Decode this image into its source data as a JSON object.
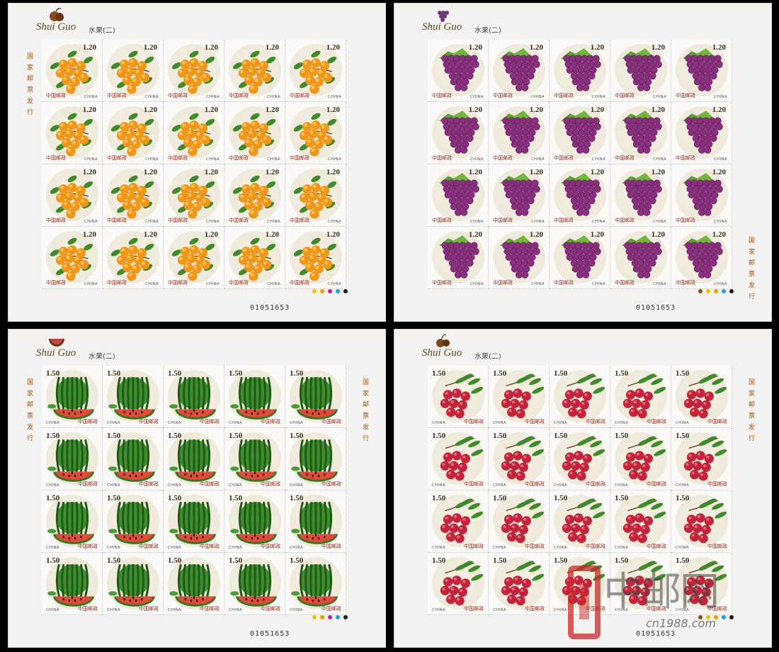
{
  "sheets": [
    {
      "id": "apricot",
      "header": {
        "title": "Shui Guo",
        "subtitle": "水果(二)"
      },
      "stamp": {
        "value": "1.20",
        "value_side": "right",
        "post": "中国邮政",
        "country": "CHINA",
        "fruit": "apricot"
      },
      "margin_text": "国 家 邮 票 发 行",
      "serial": "01051653",
      "color_dots": [
        "#f1c400",
        "#e8a000",
        "#c0208a",
        "#1aa0d8",
        "#1a1a1a"
      ]
    },
    {
      "id": "grape",
      "header": {
        "title": "Shui Guo",
        "subtitle": "水果(二)"
      },
      "stamp": {
        "value": "1.20",
        "value_side": "right",
        "post": "中国邮政",
        "country": "CHINA",
        "fruit": "grape"
      },
      "margin_text": "国 家 邮 票 发 行",
      "serial": "01051653",
      "color_dots": [
        "#8a4a1a",
        "#f1c400",
        "#e8a000",
        "#1aa0d8",
        "#1a1a1a"
      ]
    },
    {
      "id": "watermelon",
      "header": {
        "title": "Shui Guo",
        "subtitle": "水果(二)"
      },
      "stamp": {
        "value": "1.50",
        "value_side": "left",
        "post": "中国邮政",
        "country": "CHINA",
        "fruit": "watermelon"
      },
      "margin_text": "国 家 邮 票 发 行",
      "serial": "01051653",
      "color_dots": [
        "#f1c400",
        "#e8a000",
        "#c0208a",
        "#1aa0d8",
        "#1a1a1a"
      ]
    },
    {
      "id": "lychee",
      "header": {
        "title": "Shui Guo",
        "subtitle": "水果(二)"
      },
      "stamp": {
        "value": "1.50",
        "value_side": "left",
        "post": "中国邮政",
        "country": "CHINA",
        "fruit": "lychee"
      },
      "margin_text": "国 家 邮 票 发 行",
      "serial": "01051653",
      "color_dots": [
        "#8a4a1a",
        "#f1c400",
        "#e8a000",
        "#1aa0d8",
        "#1a1a1a"
      ]
    }
  ],
  "watermark": {
    "brand": "中邮网",
    "url": "cn1988.com"
  }
}
